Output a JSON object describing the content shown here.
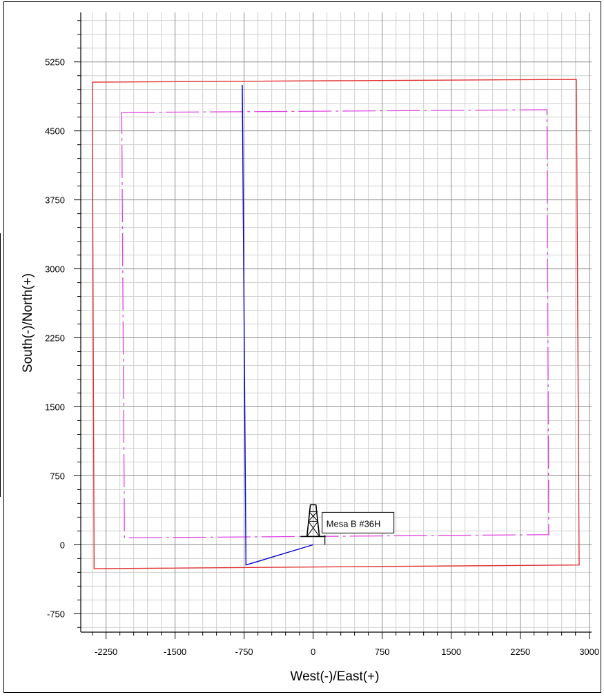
{
  "chart_data": {
    "type": "line",
    "title": "",
    "xlabel": "West(-)/East(+)",
    "ylabel": "South(-)/North(+)",
    "xlim": [
      -2525,
      3025
    ],
    "ylim": [
      -950,
      5788
    ],
    "xticks": [
      -2250,
      -1500,
      -750,
      0,
      750,
      1500,
      2250,
      3000
    ],
    "yticks": [
      -750,
      0,
      750,
      1500,
      2250,
      3000,
      3750,
      4500,
      5250
    ],
    "major_grid_step": 750,
    "minor_grid_step": 150,
    "grid": true,
    "colors": {
      "lease_boundary": "#e03030",
      "setback_boundary": "#e040e0",
      "wellpath": "#0000cc",
      "grid_major": "#8a8a8a",
      "grid_minor": "#cfcfcf",
      "rig_icon": "#000000"
    },
    "series": [
      {
        "style": "solid",
        "color": "#e03030",
        "x": [
          -2400,
          2860,
          2890,
          -2380,
          -2400
        ],
        "y": [
          5030,
          5060,
          -220,
          -260,
          5030
        ]
      },
      {
        "style": "dashed",
        "color": "#e040e0",
        "x": [
          -2080,
          2540,
          2560,
          -2050,
          -2080
        ],
        "y": [
          4700,
          4730,
          110,
          75,
          4700
        ]
      },
      {
        "style": "solid",
        "color": "#0000cc",
        "x": [
          0,
          -730,
          -770
        ],
        "y": [
          0,
          -220,
          5000
        ]
      }
    ],
    "well": {
      "label": "Mesa B #36H",
      "x": 0,
      "y": 0
    }
  }
}
